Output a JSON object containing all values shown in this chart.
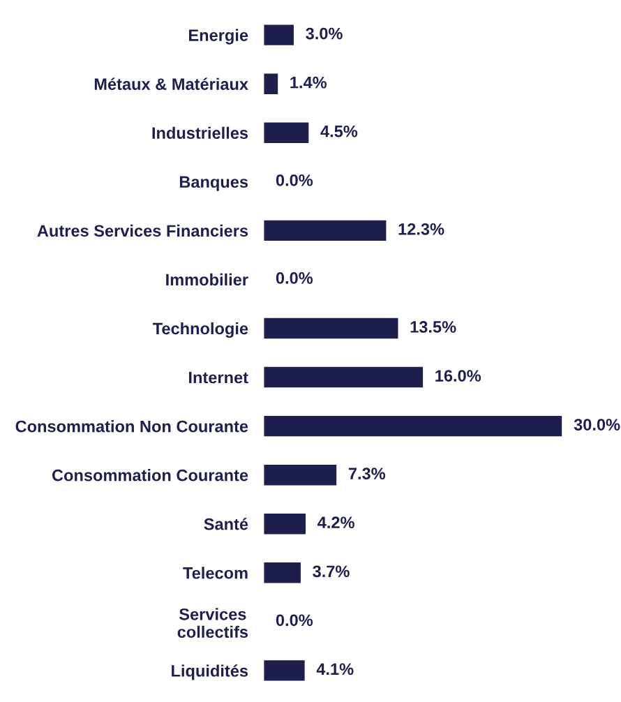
{
  "chart_data": {
    "type": "bar",
    "orientation": "horizontal",
    "categories": [
      "Energie",
      "Métaux & Matériaux",
      "Industrielles",
      "Banques",
      "Autres Services Financiers",
      "Immobilier",
      "Technologie",
      "Internet",
      "Consommation Non Courante",
      "Consommation Courante",
      "Santé",
      "Telecom",
      "Services\ncollectifs",
      "Liquidités"
    ],
    "values": [
      3.0,
      1.4,
      4.5,
      0.0,
      12.3,
      0.0,
      13.5,
      16.0,
      30.0,
      7.3,
      4.2,
      3.7,
      0.0,
      4.1
    ],
    "value_labels": [
      "3.0%",
      "1.4%",
      "4.5%",
      "0.0%",
      "12.3%",
      "0.0%",
      "13.5%",
      "16.0%",
      "30.0%",
      "7.3%",
      "4.2%",
      "3.7%",
      "0.0%",
      "4.1%"
    ],
    "color": "#1f1f4d",
    "tick_labels": "y"
  }
}
